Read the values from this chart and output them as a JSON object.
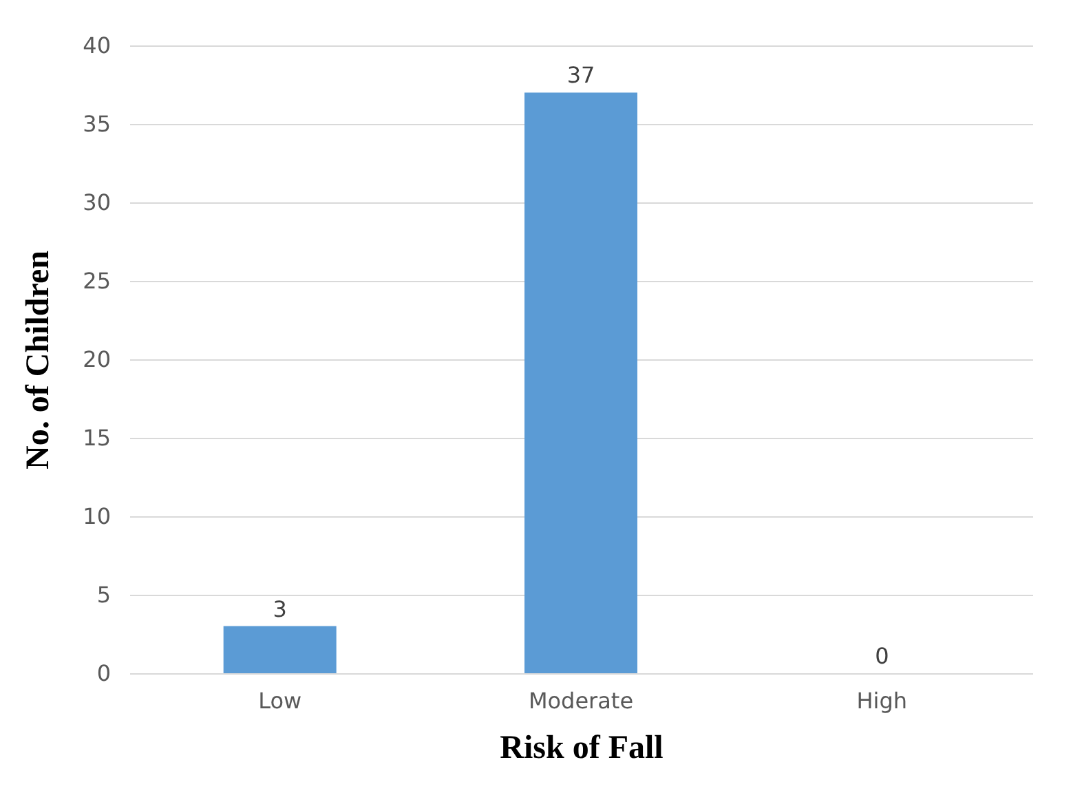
{
  "chart_data": {
    "type": "bar",
    "xlabel": "Risk of Fall",
    "ylabel": "No. of Children",
    "categories": [
      "Low",
      "Moderate",
      "High"
    ],
    "values": [
      3,
      37,
      0
    ],
    "color": "#5b9bd5",
    "ylim": [
      0,
      40
    ],
    "yticks": [
      0,
      5,
      10,
      15,
      20,
      25,
      30,
      35,
      40
    ],
    "grid": "y",
    "data_labels": true
  }
}
